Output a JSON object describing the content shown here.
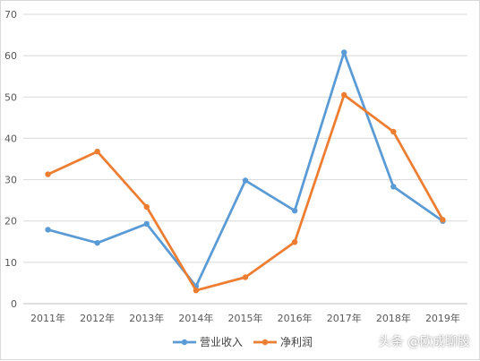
{
  "chart_data": {
    "type": "line",
    "title": "",
    "xlabel": "",
    "ylabel": "",
    "categories": [
      "2011年",
      "2012年",
      "2013年",
      "2014年",
      "2015年",
      "2016年",
      "2017年",
      "2018年",
      "2019年"
    ],
    "ylim": [
      0,
      70
    ],
    "yticks": [
      0,
      10,
      20,
      30,
      40,
      50,
      60,
      70
    ],
    "grid": true,
    "legend_position": "bottom",
    "series": [
      {
        "name": "营业收入",
        "color": "#5b9bd5",
        "values": [
          17.9,
          14.7,
          19.3,
          4.2,
          29.8,
          22.5,
          60.8,
          28.3,
          20.0
        ]
      },
      {
        "name": "净利润",
        "color": "#ed7d31",
        "values": [
          31.3,
          36.8,
          23.4,
          3.2,
          6.4,
          14.9,
          50.5,
          41.6,
          20.3
        ]
      }
    ]
  },
  "watermark": "头条 @欧成聊股"
}
